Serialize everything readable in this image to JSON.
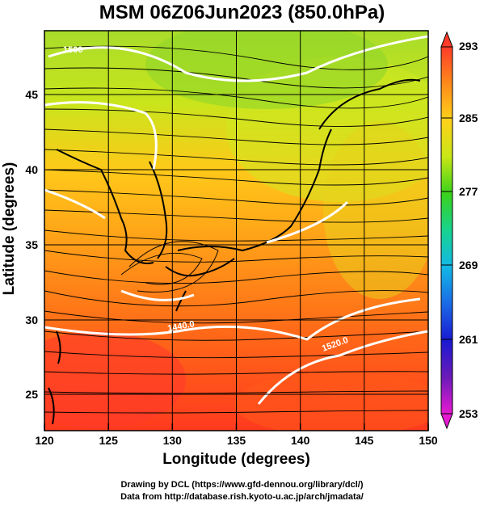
{
  "title": "MSM 06Z06Jun2023 (850.0hPa)",
  "xlabel": "Longitude (degrees)",
  "ylabel": "Latitude  (degrees)",
  "credits": {
    "line1": "Drawing by DCL (https://www.gfd-dennou.org/library/dcl/)",
    "line2": "Data from http://database.rish.kyoto-u.ac.jp/arch/jmadata/"
  },
  "map": {
    "lon_range": [
      120,
      150
    ],
    "lat_range": [
      22.5,
      47.5
    ],
    "lon_ticks": [
      "120",
      "125",
      "130",
      "135",
      "140",
      "145",
      "150"
    ],
    "lat_ticks": [
      "25",
      "30",
      "35",
      "40",
      "45"
    ],
    "contour_labels": [
      "1500",
      "1440.0",
      "1520.0"
    ]
  },
  "colorbar": {
    "min": 253,
    "max": 293,
    "tick_labels": [
      "293",
      "285",
      "277",
      "269",
      "261",
      "253"
    ],
    "colors": [
      "#ff3b2a",
      "#ff8a1a",
      "#ffd21a",
      "#c8e615",
      "#3ad21a",
      "#17d38f",
      "#13b8e6",
      "#1a6ae6",
      "#1a1ad2",
      "#6a1ab8",
      "#e61ad2"
    ]
  },
  "colors": {
    "coast": "#000000",
    "contour": "#ffffff",
    "streamline": "#000000"
  }
}
